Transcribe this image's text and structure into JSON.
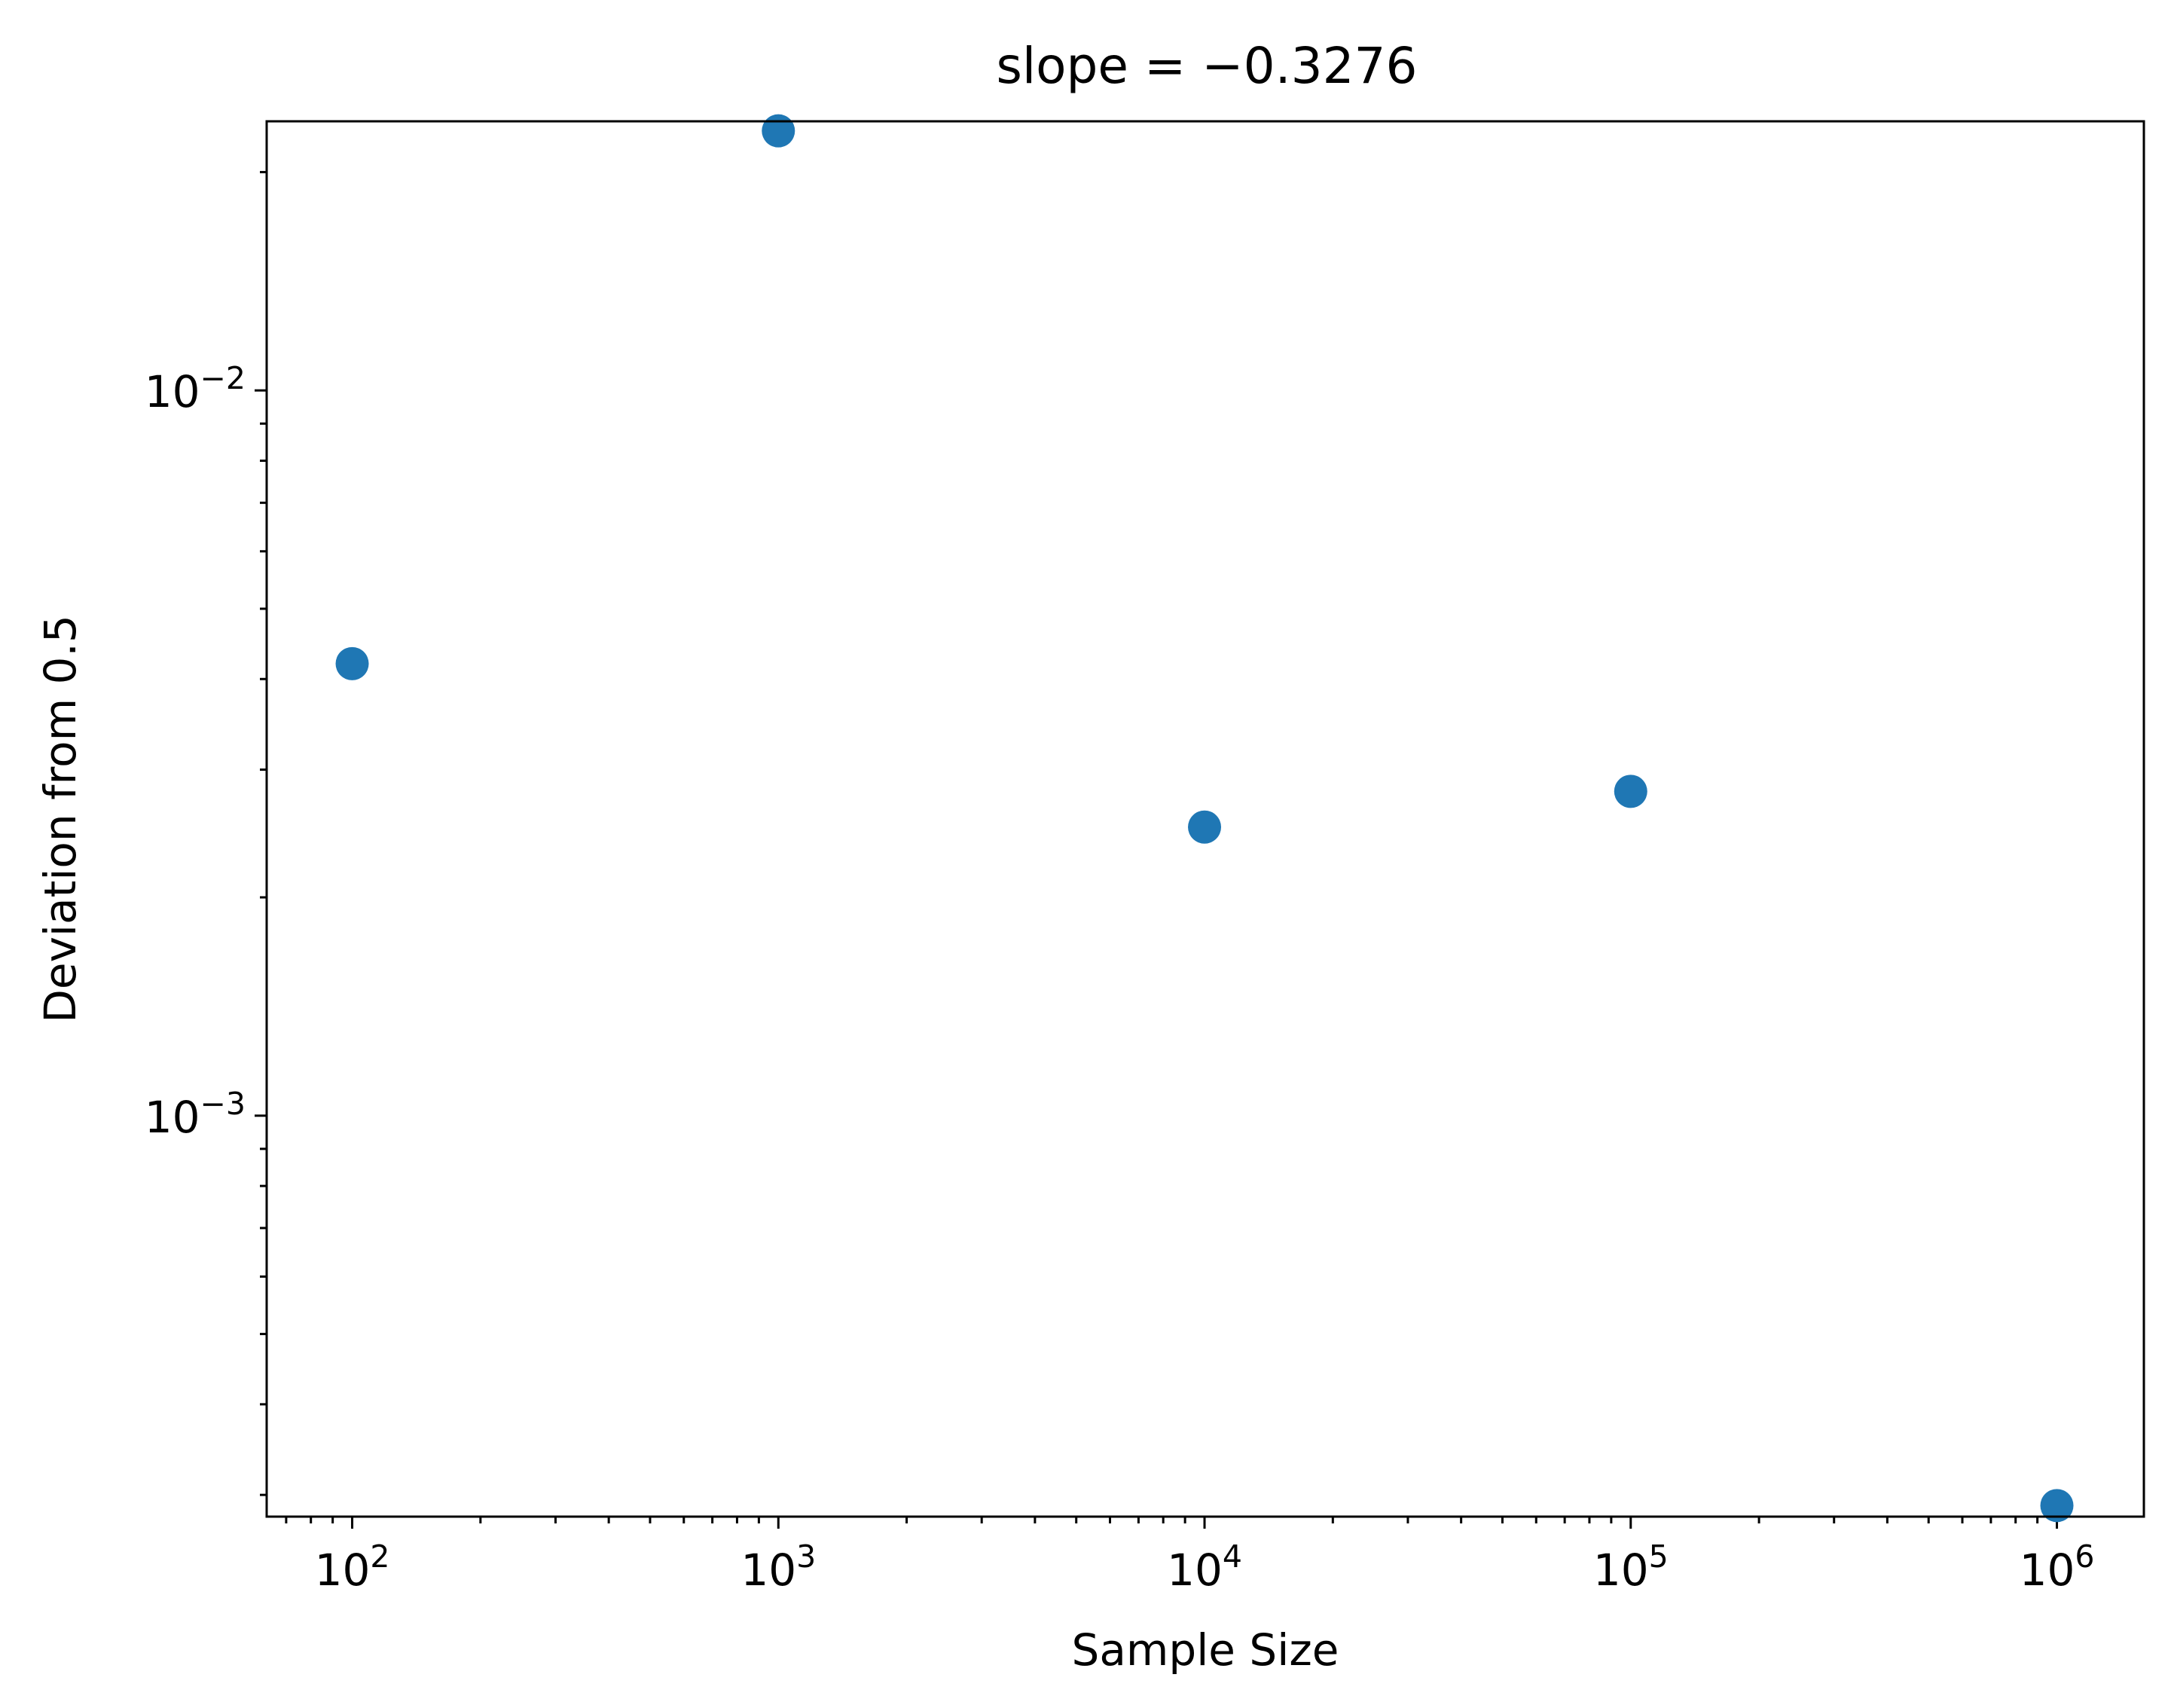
{
  "chart_data": {
    "type": "scatter",
    "title": "slope = −0.3276",
    "xlabel": "Sample Size",
    "ylabel": "Deviation from 0.5",
    "x_scale": "log",
    "y_scale": "log",
    "xlim": [
      63,
      1600000
    ],
    "ylim": [
      0.00028,
      0.0235
    ],
    "grid": false,
    "marker_color": "#1f77b4",
    "x_ticks": [
      {
        "value": 100,
        "base": "10",
        "exp": "2"
      },
      {
        "value": 1000,
        "base": "10",
        "exp": "3"
      },
      {
        "value": 10000,
        "base": "10",
        "exp": "4"
      },
      {
        "value": 100000,
        "base": "10",
        "exp": "5"
      },
      {
        "value": 1000000,
        "base": "10",
        "exp": "6"
      }
    ],
    "y_ticks": [
      {
        "value": 0.001,
        "base": "10",
        "exp": "−3"
      },
      {
        "value": 0.01,
        "base": "10",
        "exp": "−2"
      }
    ],
    "series": [
      {
        "x": [
          100,
          1000,
          10000,
          100000,
          1000000
        ],
        "y": [
          0.0042,
          0.0228,
          0.0025,
          0.0028,
          0.00029
        ]
      }
    ]
  }
}
